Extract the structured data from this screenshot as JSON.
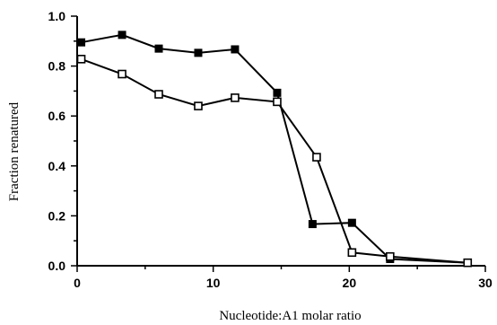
{
  "chart_data": {
    "type": "line",
    "xlabel": "Nucleotide:A1 molar ratio",
    "ylabel": "Fraction renatured",
    "xlim": [
      0,
      30
    ],
    "ylim": [
      0,
      1.0
    ],
    "x_ticks": [
      "0",
      "10",
      "20",
      "30"
    ],
    "y_ticks": [
      "0.0",
      "0.2",
      "0.4",
      "0.6",
      "0.8",
      "1.0"
    ],
    "grid": false,
    "series": [
      {
        "marker": "filled-square",
        "x": [
          0.3,
          3.3,
          6.0,
          8.9,
          11.6,
          14.7,
          17.3,
          20.2,
          23.0,
          28.7
        ],
        "y": [
          0.895,
          0.925,
          0.87,
          0.853,
          0.867,
          0.693,
          0.167,
          0.172,
          0.027,
          0.012
        ]
      },
      {
        "marker": "open-square",
        "x": [
          0.3,
          3.3,
          6.0,
          8.9,
          11.6,
          14.7,
          17.6,
          20.2,
          23.0,
          28.7
        ],
        "y": [
          0.828,
          0.768,
          0.687,
          0.64,
          0.673,
          0.657,
          0.435,
          0.053,
          0.037,
          0.012
        ]
      }
    ]
  }
}
